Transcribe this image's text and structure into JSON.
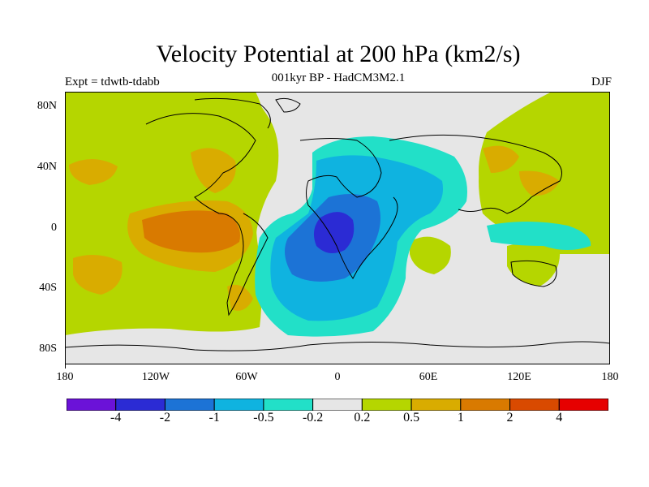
{
  "title": "Velocity Potential at 200 hPa (km2/s)",
  "subtitle": "001kyr BP - HadCM3M2.1",
  "expt_label": "Expt = tdwtb-tdabb",
  "season": "DJF",
  "lat_labels": [
    "80N",
    "40N",
    "0",
    "40S",
    "80S"
  ],
  "lon_labels": [
    "180",
    "120W",
    "60W",
    "0",
    "60E",
    "120E",
    "180"
  ],
  "legend": {
    "colors": [
      "#6b12d8",
      "#2b2bd4",
      "#1c73d6",
      "#0fb3e0",
      "#22e0c8",
      "#e6e6e6",
      "#b5d600",
      "#d9ac00",
      "#d97a00",
      "#d94a00",
      "#e60000"
    ],
    "labels": [
      "-4",
      "-2",
      "-1",
      "-0.5",
      "-0.2",
      "0.2",
      "0.5",
      "1",
      "2",
      "4"
    ]
  },
  "colors": {
    "background": "#ffffff",
    "neutral": "#e6e6e6"
  }
}
